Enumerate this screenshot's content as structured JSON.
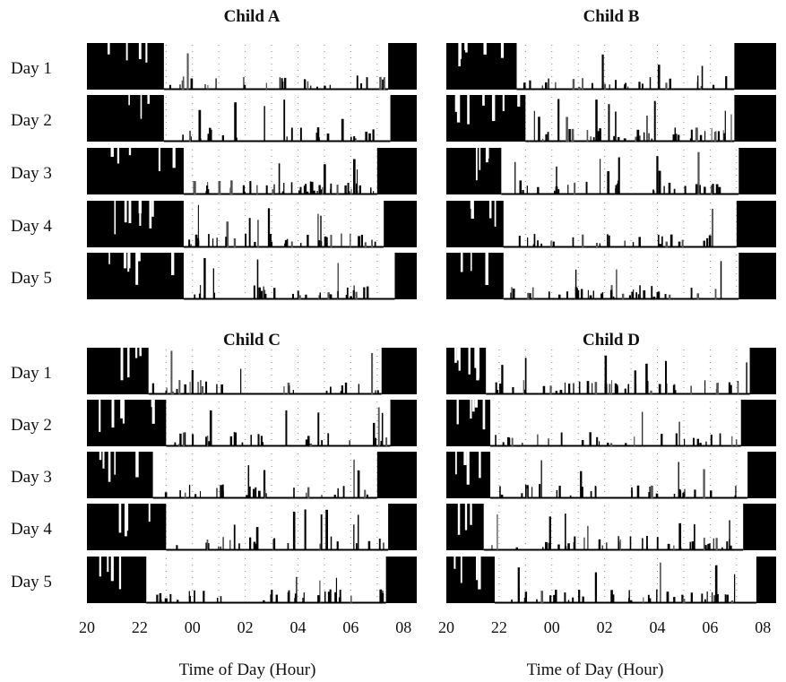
{
  "chart_data": {
    "type": "actogram",
    "xlabel": "Time of Day (Hour)",
    "x_tick_labels": [
      "20",
      "22",
      "00",
      "02",
      "04",
      "06",
      "08"
    ],
    "row_labels": [
      "Day 1",
      "Day 2",
      "Day 3",
      "Day 4",
      "Day 5"
    ],
    "colors": {
      "activity": "#000000",
      "background": "#ffffff",
      "grid": "#888888"
    },
    "panels": [
      {
        "name": "Child A",
        "days": [
          {
            "label": "Day 1",
            "sleep_onset": "22:55",
            "wake": "07:25"
          },
          {
            "label": "Day 2",
            "sleep_onset": "22:55",
            "wake": "07:30"
          },
          {
            "label": "Day 3",
            "sleep_onset": "23:40",
            "wake": "07:00"
          },
          {
            "label": "Day 4",
            "sleep_onset": "23:40",
            "wake": "07:15"
          },
          {
            "label": "Day 5",
            "sleep_onset": "23:40",
            "wake": "07:40"
          }
        ]
      },
      {
        "name": "Child B",
        "days": [
          {
            "label": "Day 1",
            "sleep_onset": "22:40",
            "wake": "06:55"
          },
          {
            "label": "Day 2",
            "sleep_onset": "23:00",
            "wake": "06:55"
          },
          {
            "label": "Day 3",
            "sleep_onset": "22:05",
            "wake": "07:05"
          },
          {
            "label": "Day 4",
            "sleep_onset": "22:10",
            "wake": "07:00"
          },
          {
            "label": "Day 5",
            "sleep_onset": "22:10",
            "wake": "07:05"
          }
        ]
      },
      {
        "name": "Child C",
        "days": [
          {
            "label": "Day 1",
            "sleep_onset": "22:20",
            "wake": "07:10"
          },
          {
            "label": "Day 2",
            "sleep_onset": "23:00",
            "wake": "07:30"
          },
          {
            "label": "Day 3",
            "sleep_onset": "22:30",
            "wake": "07:00"
          },
          {
            "label": "Day 4",
            "sleep_onset": "23:00",
            "wake": "07:25"
          },
          {
            "label": "Day 5",
            "sleep_onset": "22:15",
            "wake": "07:20"
          }
        ]
      },
      {
        "name": "Child D",
        "days": [
          {
            "label": "Day 1",
            "sleep_onset": "21:30",
            "wake": "07:30"
          },
          {
            "label": "Day 2",
            "sleep_onset": "21:40",
            "wake": "07:10"
          },
          {
            "label": "Day 3",
            "sleep_onset": "21:40",
            "wake": "07:25"
          },
          {
            "label": "Day 4",
            "sleep_onset": "21:25",
            "wake": "07:15"
          },
          {
            "label": "Day 5",
            "sleep_onset": "21:50",
            "wake": "07:45"
          }
        ]
      }
    ]
  }
}
